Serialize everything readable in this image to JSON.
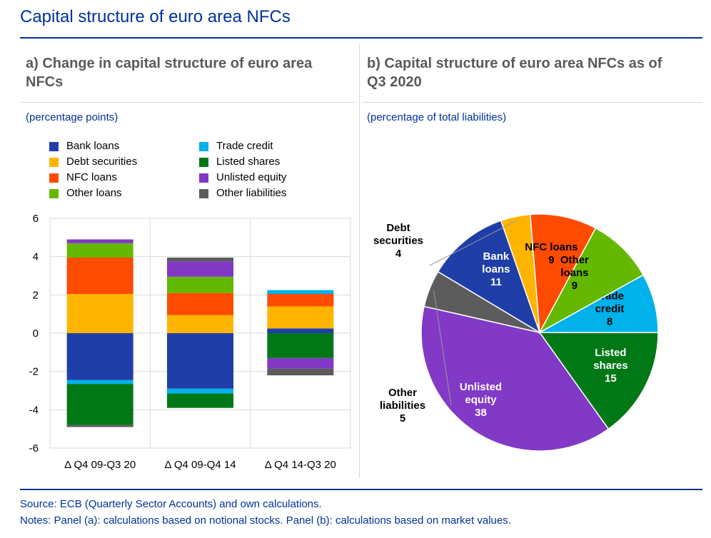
{
  "header": {
    "title": "Capital structure of euro area NFCs"
  },
  "panel_a": {
    "title_line1": "a) Change in capital structure of euro area",
    "title_line2": "NFCs",
    "unit": "(percentage points)"
  },
  "panel_b": {
    "title_line1": "b) Capital structure of euro area NFCs as of",
    "title_line2": "Q3 2020",
    "unit": "(percentage of total liabilities)"
  },
  "legend": [
    {
      "label": "Bank loans",
      "color": "#1f3ea8"
    },
    {
      "label": "Debt securities",
      "color": "#ffb400"
    },
    {
      "label": "NFC loans",
      "color": "#ff4b00"
    },
    {
      "label": "Other loans",
      "color": "#65b800"
    },
    {
      "label": "Trade credit",
      "color": "#00b1ea"
    },
    {
      "label": "Listed shares",
      "color": "#007816"
    },
    {
      "label": "Unlisted equity",
      "color": "#8139c6"
    },
    {
      "label": "Other liabilities",
      "color": "#5c5c5c"
    }
  ],
  "chart_data": [
    {
      "type": "bar",
      "stacked": true,
      "title": "a) Change in capital structure of euro area NFCs",
      "ylabel": "(percentage points)",
      "ylim": [
        -6,
        6
      ],
      "yticks": [
        -6,
        -4,
        -2,
        0,
        2,
        4,
        6
      ],
      "grid": true,
      "categories": [
        "Δ Q4 09-Q3 20",
        "Δ Q4 09-Q4 14",
        "Δ Q4 14-Q3 20"
      ],
      "series": [
        {
          "name": "Bank loans",
          "color": "#1f3ea8",
          "values": [
            -2.45,
            -2.9,
            0.25
          ]
        },
        {
          "name": "Debt securities",
          "color": "#ffb400",
          "values": [
            2.05,
            0.95,
            1.15
          ]
        },
        {
          "name": "NFC loans",
          "color": "#ff4b00",
          "values": [
            1.9,
            1.15,
            0.65
          ]
        },
        {
          "name": "Other loans",
          "color": "#65b800",
          "values": [
            0.75,
            0.85,
            0.0
          ]
        },
        {
          "name": "Trade credit",
          "color": "#00b1ea",
          "values": [
            -0.2,
            -0.25,
            0.2
          ]
        },
        {
          "name": "Listed shares",
          "color": "#007816",
          "values": [
            -2.15,
            -0.75,
            -1.3
          ]
        },
        {
          "name": "Unlisted equity",
          "color": "#8139c6",
          "values": [
            0.2,
            0.8,
            -0.55
          ]
        },
        {
          "name": "Other liabilities",
          "color": "#5c5c5c",
          "values": [
            -0.1,
            0.2,
            -0.35
          ]
        }
      ]
    },
    {
      "type": "pie",
      "title": "b) Capital structure of euro area NFCs as of Q3 2020",
      "unit": "(percentage of total liabilities)",
      "slices": [
        {
          "name": "Trade credit",
          "label": [
            "Trade",
            "credit"
          ],
          "value": 8,
          "color": "#00b1ea",
          "text_color": "#000000"
        },
        {
          "name": "Listed shares",
          "label": [
            "Listed",
            "shares"
          ],
          "value": 15,
          "color": "#007816",
          "text_color": "#ffffff"
        },
        {
          "name": "Unlisted equity",
          "label": [
            "Unlisted",
            "equity"
          ],
          "value": 38,
          "color": "#8139c6",
          "text_color": "#ffffff"
        },
        {
          "name": "Other liabilities",
          "label": [
            "Other",
            "liabilities"
          ],
          "value": 5,
          "color": "#5c5c5c",
          "text_color": "#000000"
        },
        {
          "name": "Bank loans",
          "label": [
            "Bank",
            "loans"
          ],
          "value": 11,
          "color": "#1f3ea8",
          "text_color": "#ffffff"
        },
        {
          "name": "Debt securities",
          "label": [
            "Debt",
            "securities"
          ],
          "value": 4,
          "color": "#ffb400",
          "text_color": "#000000"
        },
        {
          "name": "NFC loans",
          "label": [
            "NFC loans"
          ],
          "value": 9,
          "color": "#ff4b00",
          "text_color": "#000000"
        },
        {
          "name": "Other loans",
          "label": [
            "Other",
            "loans"
          ],
          "value": 9,
          "color": "#65b800",
          "text_color": "#000000"
        }
      ]
    }
  ],
  "footer": {
    "source": "Source: ECB (Quarterly Sector Accounts) and own calculations.",
    "notes": "Notes: Panel (a): calculations based on notional stocks. Panel (b): calculations based on market values."
  }
}
